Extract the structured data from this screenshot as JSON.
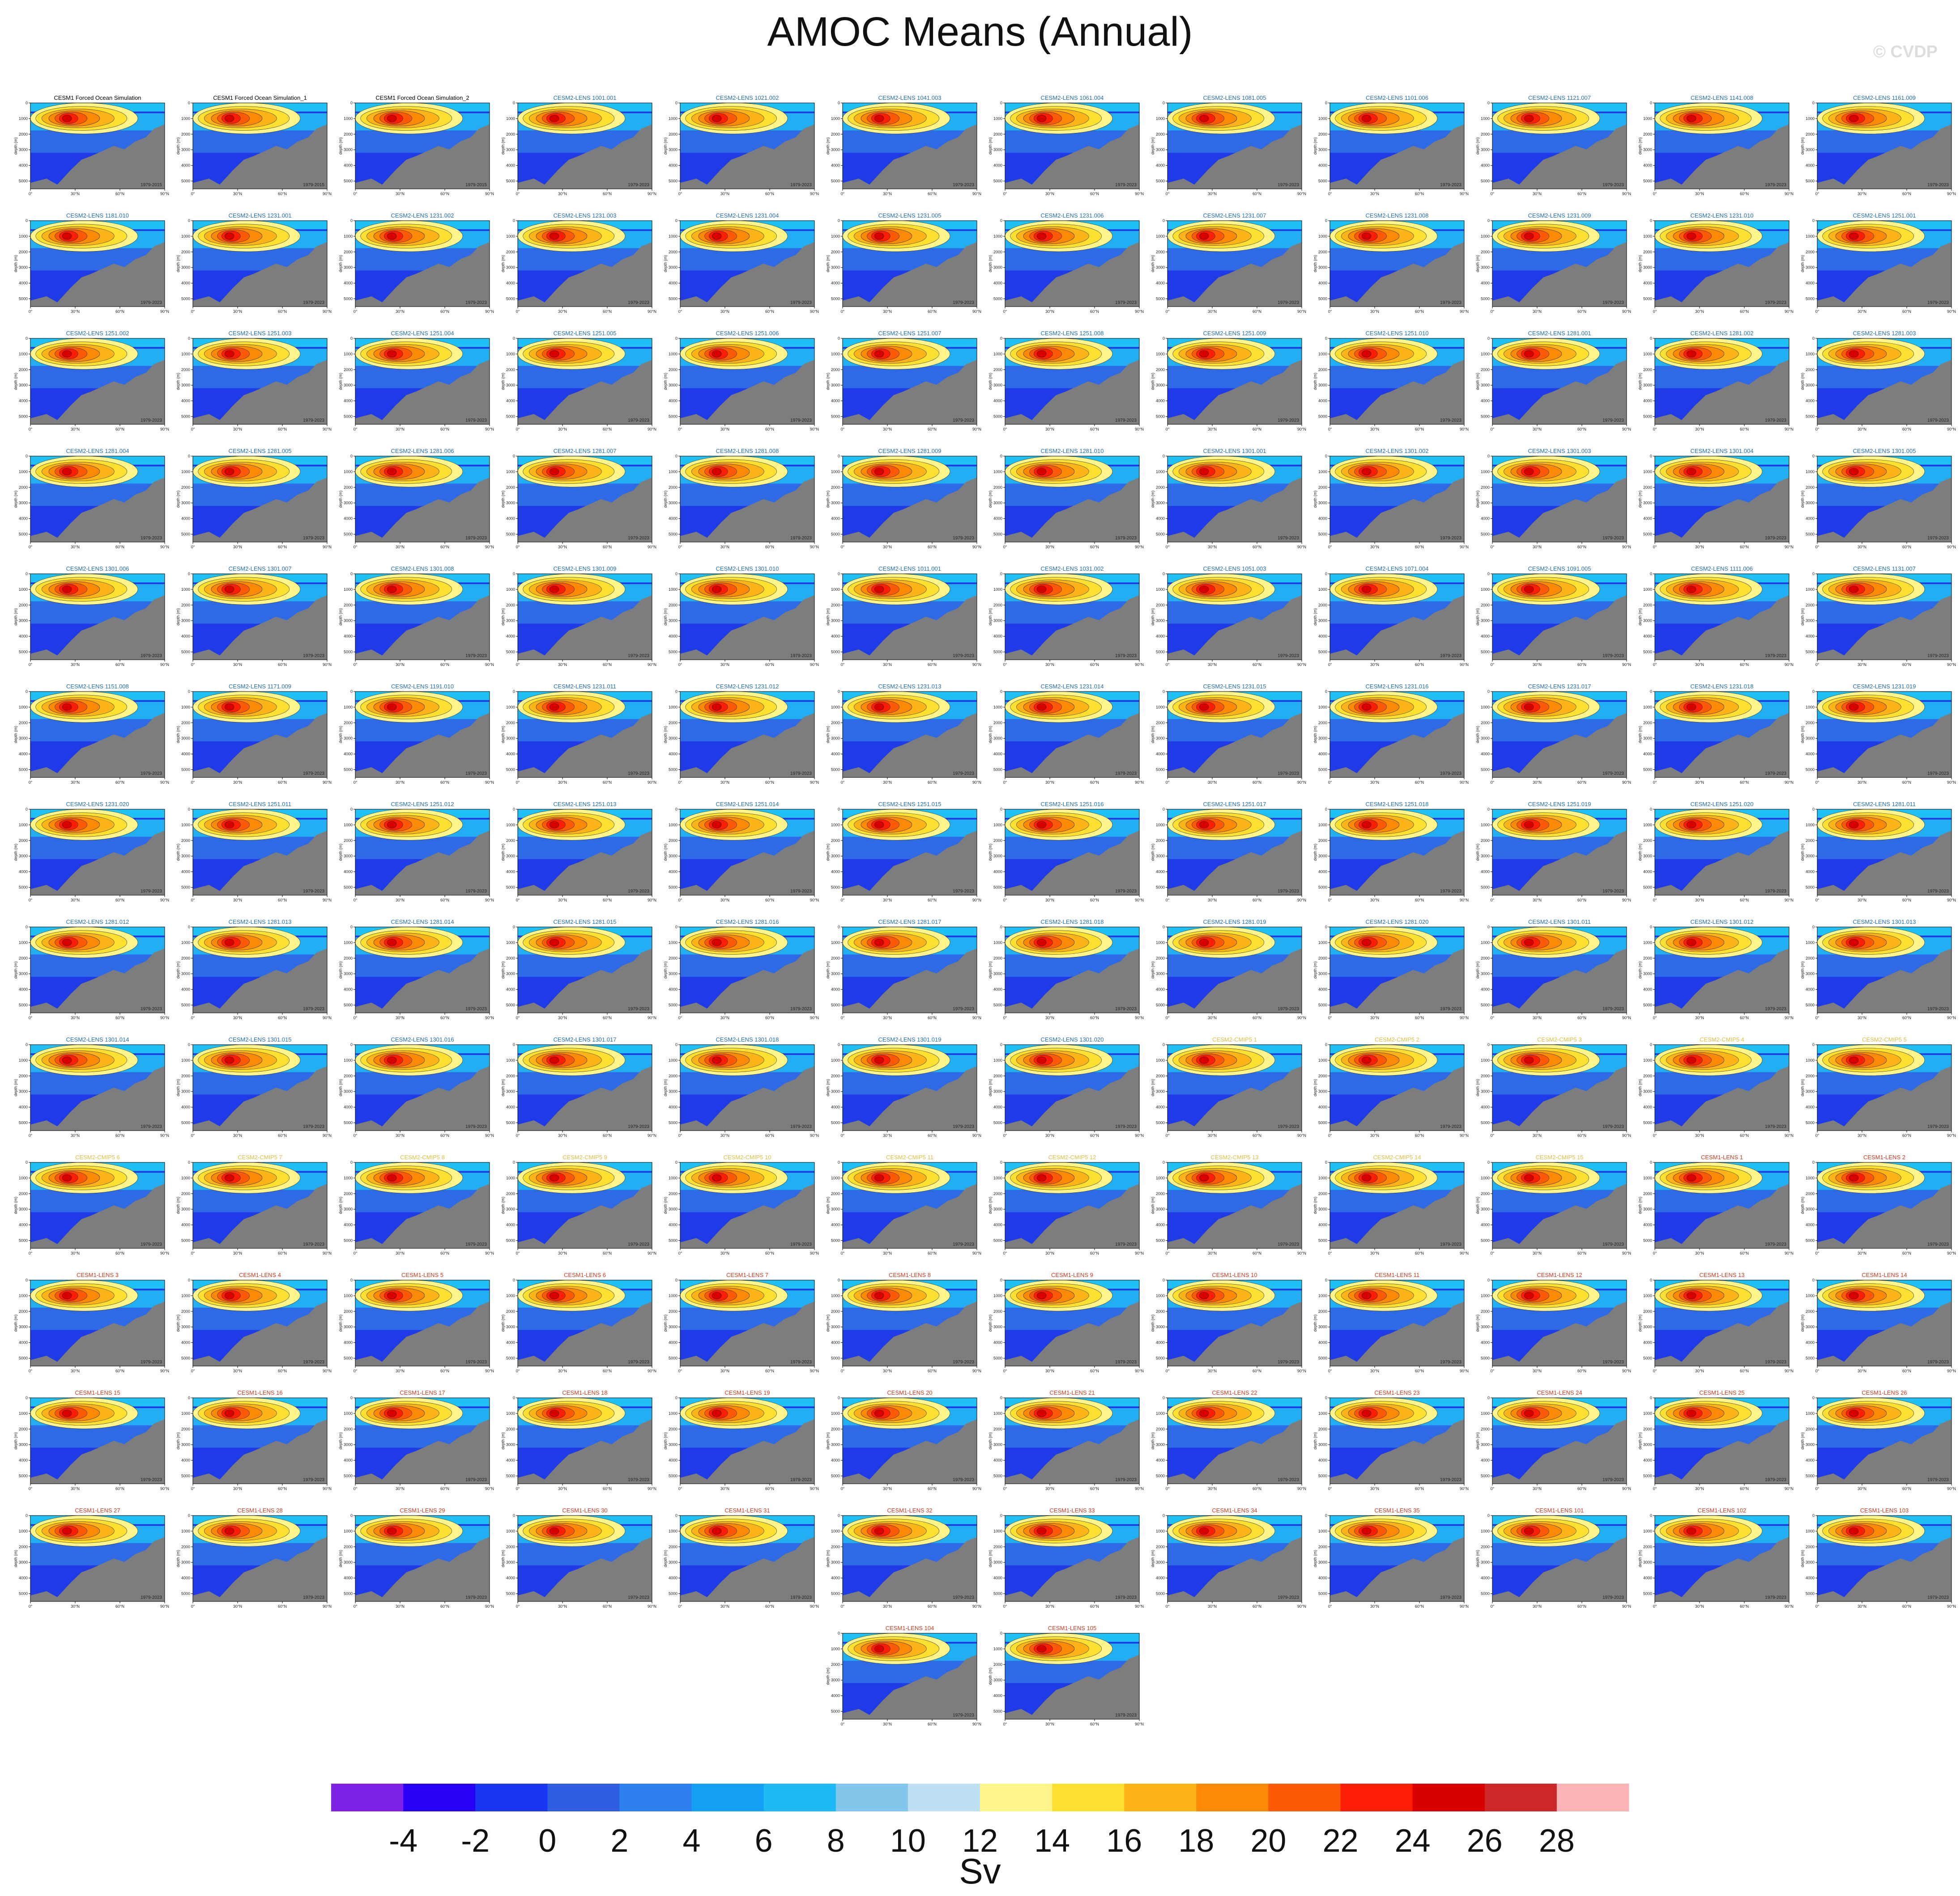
{
  "figure": {
    "title": "AMOC Means (Annual)",
    "watermark": "© CVDP"
  },
  "chart_data": {
    "type": "heatmap",
    "description_units": "Sv",
    "panel_axes": {
      "x_ticks": [
        "0°",
        "30°N",
        "60°N",
        "90°N"
      ],
      "y_ticks": [
        "0",
        "1000",
        "2000",
        "3000",
        "4000",
        "5000"
      ],
      "ylabel": "depth (m)",
      "ylim": [
        0,
        5500
      ],
      "xlim": [
        0,
        90
      ]
    },
    "title_colors": {
      "forced": "#000000",
      "cesm2": "#1f6fb4",
      "cmip5": "#e0c040",
      "cesm1": "#d23a1e"
    },
    "panels": [
      {
        "title": "CESM1 Forced Ocean Simulation",
        "period": "1979-2015",
        "group": "forced"
      },
      {
        "title": "CESM1 Forced Ocean Simulation_1",
        "period": "1979-2015",
        "group": "forced"
      },
      {
        "title": "CESM1 Forced Ocean Simulation_2",
        "period": "1979-2015",
        "group": "forced"
      },
      {
        "title": "CESM2-LENS 1001.001",
        "period": "1979-2023",
        "group": "cesm2"
      },
      {
        "title": "CESM2-LENS 1021.002",
        "period": "1979-2023",
        "group": "cesm2"
      },
      {
        "title": "CESM2-LENS 1041.003",
        "period": "1979-2023",
        "group": "cesm2"
      },
      {
        "title": "CESM2-LENS 1061.004",
        "period": "1979-2023",
        "group": "cesm2"
      },
      {
        "title": "CESM2-LENS 1081.005",
        "period": "1979-2023",
        "group": "cesm2"
      },
      {
        "title": "CESM2-LENS 1101.006",
        "period": "1979-2023",
        "group": "cesm2"
      },
      {
        "title": "CESM2-LENS 1121.007",
        "period": "1979-2023",
        "group": "cesm2"
      },
      {
        "title": "CESM2-LENS 1141.008",
        "period": "1979-2023",
        "group": "cesm2"
      },
      {
        "title": "CESM2-LENS 1161.009",
        "period": "1979-2023",
        "group": "cesm2"
      },
      {
        "title": "CESM2-LENS 1181.010",
        "period": "1979-2023",
        "group": "cesm2"
      },
      {
        "title": "CESM2-LENS 1231.001",
        "period": "1979-2023",
        "group": "cesm2"
      },
      {
        "title": "CESM2-LENS 1231.002",
        "period": "1979-2023",
        "group": "cesm2"
      },
      {
        "title": "CESM2-LENS 1231.003",
        "period": "1979-2023",
        "group": "cesm2"
      },
      {
        "title": "CESM2-LENS 1231.004",
        "period": "1979-2023",
        "group": "cesm2"
      },
      {
        "title": "CESM2-LENS 1231.005",
        "period": "1979-2023",
        "group": "cesm2"
      },
      {
        "title": "CESM2-LENS 1231.006",
        "period": "1979-2023",
        "group": "cesm2"
      },
      {
        "title": "CESM2-LENS 1231.007",
        "period": "1979-2023",
        "group": "cesm2"
      },
      {
        "title": "CESM2-LENS 1231.008",
        "period": "1979-2023",
        "group": "cesm2"
      },
      {
        "title": "CESM2-LENS 1231.009",
        "period": "1979-2023",
        "group": "cesm2"
      },
      {
        "title": "CESM2-LENS 1231.010",
        "period": "1979-2023",
        "group": "cesm2"
      },
      {
        "title": "CESM2-LENS 1251.001",
        "period": "1979-2023",
        "group": "cesm2"
      },
      {
        "title": "CESM2-LENS 1251.002",
        "period": "1979-2023",
        "group": "cesm2"
      },
      {
        "title": "CESM2-LENS 1251.003",
        "period": "1979-2023",
        "group": "cesm2"
      },
      {
        "title": "CESM2-LENS 1251.004",
        "period": "1979-2023",
        "group": "cesm2"
      },
      {
        "title": "CESM2-LENS 1251.005",
        "period": "1979-2023",
        "group": "cesm2"
      },
      {
        "title": "CESM2-LENS 1251.006",
        "period": "1979-2023",
        "group": "cesm2"
      },
      {
        "title": "CESM2-LENS 1251.007",
        "period": "1979-2023",
        "group": "cesm2"
      },
      {
        "title": "CESM2-LENS 1251.008",
        "period": "1979-2023",
        "group": "cesm2"
      },
      {
        "title": "CESM2-LENS 1251.009",
        "period": "1979-2023",
        "group": "cesm2"
      },
      {
        "title": "CESM2-LENS 1251.010",
        "period": "1979-2023",
        "group": "cesm2"
      },
      {
        "title": "CESM2-LENS 1281.001",
        "period": "1979-2023",
        "group": "cesm2"
      },
      {
        "title": "CESM2-LENS 1281.002",
        "period": "1979-2023",
        "group": "cesm2"
      },
      {
        "title": "CESM2-LENS 1281.003",
        "period": "1979-2023",
        "group": "cesm2"
      },
      {
        "title": "CESM2-LENS 1281.004",
        "period": "1979-2023",
        "group": "cesm2"
      },
      {
        "title": "CESM2-LENS 1281.005",
        "period": "1979-2023",
        "group": "cesm2"
      },
      {
        "title": "CESM2-LENS 1281.006",
        "period": "1979-2023",
        "group": "cesm2"
      },
      {
        "title": "CESM2-LENS 1281.007",
        "period": "1979-2023",
        "group": "cesm2"
      },
      {
        "title": "CESM2-LENS 1281.008",
        "period": "1979-2023",
        "group": "cesm2"
      },
      {
        "title": "CESM2-LENS 1281.009",
        "period": "1979-2023",
        "group": "cesm2"
      },
      {
        "title": "CESM2-LENS 1281.010",
        "period": "1979-2023",
        "group": "cesm2"
      },
      {
        "title": "CESM2-LENS 1301.001",
        "period": "1979-2023",
        "group": "cesm2"
      },
      {
        "title": "CESM2-LENS 1301.002",
        "period": "1979-2023",
        "group": "cesm2"
      },
      {
        "title": "CESM2-LENS 1301.003",
        "period": "1979-2023",
        "group": "cesm2"
      },
      {
        "title": "CESM2-LENS 1301.004",
        "period": "1979-2023",
        "group": "cesm2"
      },
      {
        "title": "CESM2-LENS 1301.005",
        "period": "1979-2023",
        "group": "cesm2"
      },
      {
        "title": "CESM2-LENS 1301.006",
        "period": "1979-2023",
        "group": "cesm2"
      },
      {
        "title": "CESM2-LENS 1301.007",
        "period": "1979-2023",
        "group": "cesm2"
      },
      {
        "title": "CESM2-LENS 1301.008",
        "period": "1979-2023",
        "group": "cesm2"
      },
      {
        "title": "CESM2-LENS 1301.009",
        "period": "1979-2023",
        "group": "cesm2"
      },
      {
        "title": "CESM2-LENS 1301.010",
        "period": "1979-2023",
        "group": "cesm2"
      },
      {
        "title": "CESM2-LENS 1011.001",
        "period": "1979-2023",
        "group": "cesm2"
      },
      {
        "title": "CESM2-LENS 1031.002",
        "period": "1979-2023",
        "group": "cesm2"
      },
      {
        "title": "CESM2-LENS 1051.003",
        "period": "1979-2023",
        "group": "cesm2"
      },
      {
        "title": "CESM2-LENS 1071.004",
        "period": "1979-2023",
        "group": "cesm2"
      },
      {
        "title": "CESM2-LENS 1091.005",
        "period": "1979-2023",
        "group": "cesm2"
      },
      {
        "title": "CESM2-LENS 1111.006",
        "period": "1979-2023",
        "group": "cesm2"
      },
      {
        "title": "CESM2-LENS 1131.007",
        "period": "1979-2023",
        "group": "cesm2"
      },
      {
        "title": "CESM2-LENS 1151.008",
        "period": "1979-2023",
        "group": "cesm2"
      },
      {
        "title": "CESM2-LENS 1171.009",
        "period": "1979-2023",
        "group": "cesm2"
      },
      {
        "title": "CESM2-LENS 1191.010",
        "period": "1979-2023",
        "group": "cesm2"
      },
      {
        "title": "CESM2-LENS 1231.011",
        "period": "1979-2023",
        "group": "cesm2"
      },
      {
        "title": "CESM2-LENS 1231.012",
        "period": "1979-2023",
        "group": "cesm2"
      },
      {
        "title": "CESM2-LENS 1231.013",
        "period": "1979-2023",
        "group": "cesm2"
      },
      {
        "title": "CESM2-LENS 1231.014",
        "period": "1979-2023",
        "group": "cesm2"
      },
      {
        "title": "CESM2-LENS 1231.015",
        "period": "1979-2023",
        "group": "cesm2"
      },
      {
        "title": "CESM2-LENS 1231.016",
        "period": "1979-2023",
        "group": "cesm2"
      },
      {
        "title": "CESM2-LENS 1231.017",
        "period": "1979-2023",
        "group": "cesm2"
      },
      {
        "title": "CESM2-LENS 1231.018",
        "period": "1979-2023",
        "group": "cesm2"
      },
      {
        "title": "CESM2-LENS 1231.019",
        "period": "1979-2023",
        "group": "cesm2"
      },
      {
        "title": "CESM2-LENS 1231.020",
        "period": "1979-2023",
        "group": "cesm2"
      },
      {
        "title": "CESM2-LENS 1251.011",
        "period": "1979-2023",
        "group": "cesm2"
      },
      {
        "title": "CESM2-LENS 1251.012",
        "period": "1979-2023",
        "group": "cesm2"
      },
      {
        "title": "CESM2-LENS 1251.013",
        "period": "1979-2023",
        "group": "cesm2"
      },
      {
        "title": "CESM2-LENS 1251.014",
        "period": "1979-2023",
        "group": "cesm2"
      },
      {
        "title": "CESM2-LENS 1251.015",
        "period": "1979-2023",
        "group": "cesm2"
      },
      {
        "title": "CESM2-LENS 1251.016",
        "period": "1979-2023",
        "group": "cesm2"
      },
      {
        "title": "CESM2-LENS 1251.017",
        "period": "1979-2023",
        "group": "cesm2"
      },
      {
        "title": "CESM2-LENS 1251.018",
        "period": "1979-2023",
        "group": "cesm2"
      },
      {
        "title": "CESM2-LENS 1251.019",
        "period": "1979-2023",
        "group": "cesm2"
      },
      {
        "title": "CESM2-LENS 1251.020",
        "period": "1979-2023",
        "group": "cesm2"
      },
      {
        "title": "CESM2-LENS 1281.011",
        "period": "1979-2023",
        "group": "cesm2"
      },
      {
        "title": "CESM2-LENS 1281.012",
        "period": "1979-2023",
        "group": "cesm2"
      },
      {
        "title": "CESM2-LENS 1281.013",
        "period": "1979-2023",
        "group": "cesm2"
      },
      {
        "title": "CESM2-LENS 1281.014",
        "period": "1979-2023",
        "group": "cesm2"
      },
      {
        "title": "CESM2-LENS 1281.015",
        "period": "1979-2023",
        "group": "cesm2"
      },
      {
        "title": "CESM2-LENS 1281.016",
        "period": "1979-2023",
        "group": "cesm2"
      },
      {
        "title": "CESM2-LENS 1281.017",
        "period": "1979-2023",
        "group": "cesm2"
      },
      {
        "title": "CESM2-LENS 1281.018",
        "period": "1979-2023",
        "group": "cesm2"
      },
      {
        "title": "CESM2-LENS 1281.019",
        "period": "1979-2023",
        "group": "cesm2"
      },
      {
        "title": "CESM2-LENS 1281.020",
        "period": "1979-2023",
        "group": "cesm2"
      },
      {
        "title": "CESM2-LENS 1301.011",
        "period": "1979-2023",
        "group": "cesm2"
      },
      {
        "title": "CESM2-LENS 1301.012",
        "period": "1979-2023",
        "group": "cesm2"
      },
      {
        "title": "CESM2-LENS 1301.013",
        "period": "1979-2023",
        "group": "cesm2"
      },
      {
        "title": "CESM2-LENS 1301.014",
        "period": "1979-2023",
        "group": "cesm2"
      },
      {
        "title": "CESM2-LENS 1301.015",
        "period": "1979-2023",
        "group": "cesm2"
      },
      {
        "title": "CESM2-LENS 1301.016",
        "period": "1979-2023",
        "group": "cesm2"
      },
      {
        "title": "CESM2-LENS 1301.017",
        "period": "1979-2023",
        "group": "cesm2"
      },
      {
        "title": "CESM2-LENS 1301.018",
        "period": "1979-2023",
        "group": "cesm2"
      },
      {
        "title": "CESM2-LENS 1301.019",
        "period": "1979-2023",
        "group": "cesm2"
      },
      {
        "title": "CESM2-LENS 1301.020",
        "period": "1979-2023",
        "group": "cesm2"
      },
      {
        "title": "CESM2-CMIP5 1",
        "period": "1979-2023",
        "group": "cmip5"
      },
      {
        "title": "CESM2-CMIP5 2",
        "period": "1979-2023",
        "group": "cmip5"
      },
      {
        "title": "CESM2-CMIP5 3",
        "period": "1979-2023",
        "group": "cmip5"
      },
      {
        "title": "CESM2-CMIP5 4",
        "period": "1979-2023",
        "group": "cmip5"
      },
      {
        "title": "CESM2-CMIP5 5",
        "period": "1979-2023",
        "group": "cmip5"
      },
      {
        "title": "CESM2-CMIP5 6",
        "period": "1979-2023",
        "group": "cmip5"
      },
      {
        "title": "CESM2-CMIP5 7",
        "period": "1979-2023",
        "group": "cmip5"
      },
      {
        "title": "CESM2-CMIP5 8",
        "period": "1979-2023",
        "group": "cmip5"
      },
      {
        "title": "CESM2-CMIP5 9",
        "period": "1979-2023",
        "group": "cmip5"
      },
      {
        "title": "CESM2-CMIP5 10",
        "period": "1979-2023",
        "group": "cmip5"
      },
      {
        "title": "CESM2-CMIP5 11",
        "period": "1979-2023",
        "group": "cmip5"
      },
      {
        "title": "CESM2-CMIP5 12",
        "period": "1979-2023",
        "group": "cmip5"
      },
      {
        "title": "CESM2-CMIP5 13",
        "period": "1979-2023",
        "group": "cmip5"
      },
      {
        "title": "CESM2-CMIP5 14",
        "period": "1979-2023",
        "group": "cmip5"
      },
      {
        "title": "CESM2-CMIP5 15",
        "period": "1979-2023",
        "group": "cmip5"
      },
      {
        "title": "CESM1-LENS 1",
        "period": "1979-2023",
        "group": "cesm1"
      },
      {
        "title": "CESM1-LENS 2",
        "period": "1979-2023",
        "group": "cesm1"
      },
      {
        "title": "CESM1-LENS 3",
        "period": "1979-2023",
        "group": "cesm1"
      },
      {
        "title": "CESM1-LENS 4",
        "period": "1979-2023",
        "group": "cesm1"
      },
      {
        "title": "CESM1-LENS 5",
        "period": "1979-2023",
        "group": "cesm1"
      },
      {
        "title": "CESM1-LENS 6",
        "period": "1979-2023",
        "group": "cesm1"
      },
      {
        "title": "CESM1-LENS 7",
        "period": "1979-2023",
        "group": "cesm1"
      },
      {
        "title": "CESM1-LENS 8",
        "period": "1979-2023",
        "group": "cesm1"
      },
      {
        "title": "CESM1-LENS 9",
        "period": "1979-2023",
        "group": "cesm1"
      },
      {
        "title": "CESM1-LENS 10",
        "period": "1979-2023",
        "group": "cesm1"
      },
      {
        "title": "CESM1-LENS 11",
        "period": "1979-2023",
        "group": "cesm1"
      },
      {
        "title": "CESM1-LENS 12",
        "period": "1979-2023",
        "group": "cesm1"
      },
      {
        "title": "CESM1-LENS 13",
        "period": "1979-2023",
        "group": "cesm1"
      },
      {
        "title": "CESM1-LENS 14",
        "period": "1979-2023",
        "group": "cesm1"
      },
      {
        "title": "CESM1-LENS 15",
        "period": "1979-2023",
        "group": "cesm1"
      },
      {
        "title": "CESM1-LENS 16",
        "period": "1979-2023",
        "group": "cesm1"
      },
      {
        "title": "CESM1-LENS 17",
        "period": "1979-2023",
        "group": "cesm1"
      },
      {
        "title": "CESM1-LENS 18",
        "period": "1979-2023",
        "group": "cesm1"
      },
      {
        "title": "CESM1-LENS 19",
        "period": "1979-2023",
        "group": "cesm1"
      },
      {
        "title": "CESM1-LENS 20",
        "period": "1979-2023",
        "group": "cesm1"
      },
      {
        "title": "CESM1-LENS 21",
        "period": "1979-2023",
        "group": "cesm1"
      },
      {
        "title": "CESM1-LENS 22",
        "period": "1979-2023",
        "group": "cesm1"
      },
      {
        "title": "CESM1-LENS 23",
        "period": "1979-2023",
        "group": "cesm1"
      },
      {
        "title": "CESM1-LENS 24",
        "period": "1979-2023",
        "group": "cesm1"
      },
      {
        "title": "CESM1-LENS 25",
        "period": "1979-2023",
        "group": "cesm1"
      },
      {
        "title": "CESM1-LENS 26",
        "period": "1979-2023",
        "group": "cesm1"
      },
      {
        "title": "CESM1-LENS 27",
        "period": "1979-2023",
        "group": "cesm1"
      },
      {
        "title": "CESM1-LENS 28",
        "period": "1979-2023",
        "group": "cesm1"
      },
      {
        "title": "CESM1-LENS 29",
        "period": "1979-2023",
        "group": "cesm1"
      },
      {
        "title": "CESM1-LENS 30",
        "period": "1979-2023",
        "group": "cesm1"
      },
      {
        "title": "CESM1-LENS 31",
        "period": "1979-2023",
        "group": "cesm1"
      },
      {
        "title": "CESM1-LENS 32",
        "period": "1979-2023",
        "group": "cesm1"
      },
      {
        "title": "CESM1-LENS 33",
        "period": "1979-2023",
        "group": "cesm1"
      },
      {
        "title": "CESM1-LENS 34",
        "period": "1979-2023",
        "group": "cesm1"
      },
      {
        "title": "CESM1-LENS 35",
        "period": "1979-2023",
        "group": "cesm1"
      },
      {
        "title": "CESM1-LENS 101",
        "period": "1979-2023",
        "group": "cesm1"
      },
      {
        "title": "CESM1-LENS 102",
        "period": "1979-2023",
        "group": "cesm1"
      },
      {
        "title": "CESM1-LENS 103",
        "period": "1979-2023",
        "group": "cesm1"
      },
      {
        "title": "CESM1-LENS 104",
        "period": "1979-2023",
        "group": "cesm1"
      },
      {
        "title": "CESM1-LENS 105",
        "period": "1979-2023",
        "group": "cesm1"
      }
    ],
    "colorbar": {
      "label": "Sv",
      "colors": [
        "#7e22e6",
        "#2a00f5",
        "#1a36f0",
        "#2f5ee0",
        "#2e7ff0",
        "#14a0f5",
        "#1ebaf5",
        "#82c6ec",
        "#bde0f2",
        "#fff58a",
        "#fde030",
        "#fcb418",
        "#fd8a05",
        "#fc5a07",
        "#fd1e05",
        "#d90000",
        "#cd2828",
        "#fdb4b4"
      ],
      "tick_labels": [
        "-4",
        "-2",
        "0",
        "2",
        "4",
        "6",
        "8",
        "10",
        "12",
        "14",
        "16",
        "18",
        "20",
        "22",
        "24",
        "26",
        "28"
      ]
    }
  }
}
